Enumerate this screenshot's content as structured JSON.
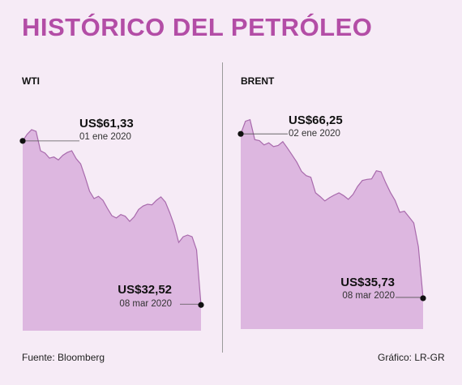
{
  "title": "HISTÓRICO DEL PETRÓLEO",
  "source": "Fuente: Bloomberg",
  "credit": "Gráfico: LR-GR",
  "colors": {
    "title": "#b34da6",
    "area_fill": "#ddb7e0",
    "area_stroke": "#a86aac",
    "background": "#f6ebf6",
    "marker": "#111111"
  },
  "chart_data": [
    {
      "type": "area",
      "name": "WTI",
      "x_label_start": "01 ene 2020",
      "x_label_end": "08 mar 2020",
      "annotations": [
        {
          "value": "US$61,33",
          "date": "01 ene 2020",
          "point": "start"
        },
        {
          "value": "US$32,52",
          "date": "08 mar 2020",
          "point": "end"
        }
      ],
      "ylim": [
        28,
        68
      ],
      "values": [
        61.33,
        62.5,
        63.3,
        63.0,
        59.6,
        59.2,
        58.3,
        58.5,
        58.0,
        58.8,
        59.3,
        59.6,
        58.2,
        57.3,
        55.0,
        52.5,
        51.2,
        51.6,
        50.9,
        49.5,
        48.2,
        47.8,
        48.4,
        48.1,
        47.2,
        48.0,
        49.3,
        49.9,
        50.2,
        50.1,
        50.9,
        51.5,
        50.6,
        48.7,
        46.5,
        43.5,
        44.5,
        44.8,
        44.5,
        42.2,
        32.52
      ]
    },
    {
      "type": "area",
      "name": "BRENT",
      "x_label_start": "02 ene 2020",
      "x_label_end": "08 mar 2020",
      "annotations": [
        {
          "value": "US$66,25",
          "date": "02 ene 2020",
          "point": "start"
        },
        {
          "value": "US$35,73",
          "date": "08 mar 2020",
          "point": "end"
        }
      ],
      "ylim": [
        30,
        72
      ],
      "values": [
        66.25,
        68.6,
        68.9,
        65.2,
        65.0,
        64.2,
        64.6,
        63.9,
        64.1,
        64.8,
        63.6,
        62.3,
        61.0,
        59.3,
        58.5,
        58.2,
        55.3,
        54.6,
        53.8,
        54.4,
        54.9,
        55.3,
        54.8,
        54.1,
        55.0,
        56.5,
        57.6,
        57.8,
        57.9,
        59.4,
        59.2,
        57.2,
        55.4,
        53.9,
        51.7,
        51.9,
        50.8,
        49.7,
        45.3,
        35.73
      ]
    }
  ]
}
